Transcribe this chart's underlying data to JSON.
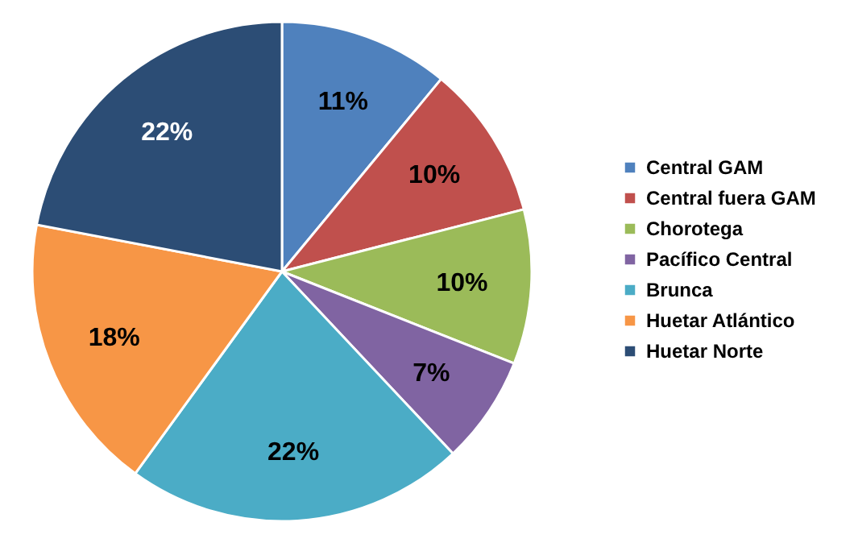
{
  "chart_data": {
    "type": "pie",
    "categories": [
      "Central GAM",
      "Central fuera  GAM",
      "Chorotega",
      "Pacífico Central",
      "Brunca",
      "Huetar Atlántico",
      "Huetar Norte"
    ],
    "values": [
      11,
      10,
      10,
      7,
      22,
      18,
      22
    ],
    "colors": [
      "#4f81bd",
      "#c0504d",
      "#9bbb59",
      "#8064a2",
      "#4bacc6",
      "#f79646",
      "#2c4d75"
    ],
    "value_labels": [
      "11%",
      "10%",
      "10%",
      "7%",
      "22%",
      "18%",
      "22%"
    ],
    "legend": "right"
  }
}
